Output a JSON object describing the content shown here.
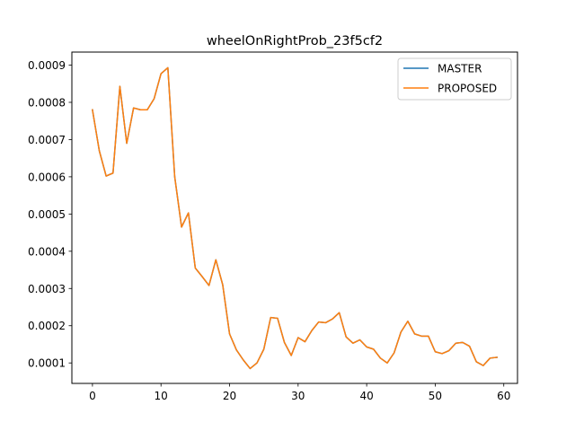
{
  "chart_data": {
    "type": "line",
    "title": "wheelOnRightProb_23f5cf2",
    "xlabel": "",
    "ylabel": "",
    "xlim": [
      -3,
      62
    ],
    "ylim": [
      4.5e-05,
      0.000935
    ],
    "x_ticks": [
      0,
      10,
      20,
      30,
      40,
      50,
      60
    ],
    "x_tick_labels": [
      "0",
      "10",
      "20",
      "30",
      "40",
      "50",
      "60"
    ],
    "y_ticks": [
      0.0001,
      0.0002,
      0.0003,
      0.0004,
      0.0005,
      0.0006,
      0.0007,
      0.0008,
      0.0009
    ],
    "y_tick_labels": [
      "0.0001",
      "0.0002",
      "0.0003",
      "0.0004",
      "0.0005",
      "0.0006",
      "0.0007",
      "0.0008",
      "0.0009"
    ],
    "legend_position": "top-right",
    "grid": false,
    "x": [
      0,
      1,
      2,
      3,
      4,
      5,
      6,
      7,
      8,
      9,
      10,
      11,
      12,
      13,
      14,
      15,
      16,
      17,
      18,
      19,
      20,
      21,
      22,
      23,
      24,
      25,
      26,
      27,
      28,
      29,
      30,
      31,
      32,
      33,
      34,
      35,
      36,
      37,
      38,
      39,
      40,
      41,
      42,
      43,
      44,
      45,
      46,
      47,
      48,
      49,
      50,
      51,
      52,
      53,
      54,
      55,
      56,
      57,
      58,
      59
    ],
    "series": [
      {
        "name": "MASTER",
        "color": "#1f77b4",
        "values": [
          0.00078,
          0.00067,
          0.000602,
          0.00061,
          0.000843,
          0.00069,
          0.000785,
          0.00078,
          0.00078,
          0.00081,
          0.000877,
          0.000893,
          0.0006,
          0.000465,
          0.000503,
          0.000355,
          0.000332,
          0.000308,
          0.000377,
          0.00031,
          0.000178,
          0.000135,
          0.000108,
          8.5e-05,
          0.0001,
          0.000137,
          0.000222,
          0.00022,
          0.000155,
          0.00012,
          0.000168,
          0.000157,
          0.000187,
          0.00021,
          0.000208,
          0.000218,
          0.000235,
          0.00017,
          0.000153,
          0.000162,
          0.000143,
          0.000137,
          0.000113,
          0.0001,
          0.000127,
          0.000183,
          0.000212,
          0.000178,
          0.000172,
          0.000172,
          0.00013,
          0.000125,
          0.000133,
          0.000153,
          0.000155,
          0.000145,
          0.000103,
          9.3e-05,
          0.000113,
          0.000115
        ]
      },
      {
        "name": "PROPOSED",
        "color": "#ff7f0e",
        "values": [
          0.00078,
          0.00067,
          0.000602,
          0.00061,
          0.000843,
          0.00069,
          0.000785,
          0.00078,
          0.00078,
          0.00081,
          0.000877,
          0.000893,
          0.0006,
          0.000465,
          0.000503,
          0.000355,
          0.000332,
          0.000308,
          0.000377,
          0.00031,
          0.000178,
          0.000135,
          0.000108,
          8.5e-05,
          0.0001,
          0.000137,
          0.000222,
          0.00022,
          0.000155,
          0.00012,
          0.000168,
          0.000157,
          0.000187,
          0.00021,
          0.000208,
          0.000218,
          0.000235,
          0.00017,
          0.000153,
          0.000162,
          0.000143,
          0.000137,
          0.000113,
          0.0001,
          0.000127,
          0.000183,
          0.000212,
          0.000178,
          0.000172,
          0.000172,
          0.00013,
          0.000125,
          0.000133,
          0.000153,
          0.000155,
          0.000145,
          0.000103,
          9.3e-05,
          0.000113,
          0.000115
        ]
      }
    ]
  }
}
